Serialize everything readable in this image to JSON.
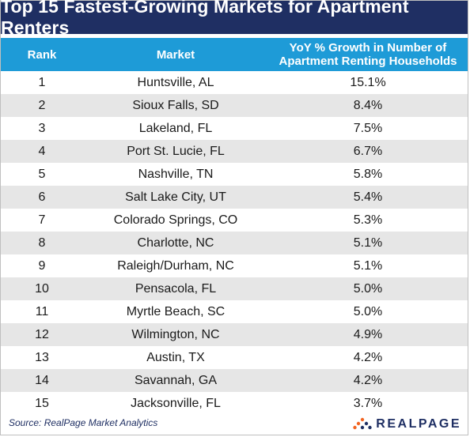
{
  "chart_data": {
    "type": "table",
    "title": "Top 15 Fastest-Growing Markets for Apartment Renters",
    "columns": {
      "rank": "Rank",
      "market": "Market",
      "growth_line1": "YoY % Growth in Number of",
      "growth_line2": "Apartment Renting Households"
    },
    "rows": [
      {
        "rank": "1",
        "market": "Huntsville, AL",
        "growth": "15.1%"
      },
      {
        "rank": "2",
        "market": "Sioux Falls, SD",
        "growth": "8.4%"
      },
      {
        "rank": "3",
        "market": "Lakeland, FL",
        "growth": "7.5%"
      },
      {
        "rank": "4",
        "market": "Port St. Lucie, FL",
        "growth": "6.7%"
      },
      {
        "rank": "5",
        "market": "Nashville, TN",
        "growth": "5.8%"
      },
      {
        "rank": "6",
        "market": "Salt Lake City, UT",
        "growth": "5.4%"
      },
      {
        "rank": "7",
        "market": "Colorado Springs, CO",
        "growth": "5.3%"
      },
      {
        "rank": "8",
        "market": "Charlotte, NC",
        "growth": "5.1%"
      },
      {
        "rank": "9",
        "market": "Raleigh/Durham, NC",
        "growth": "5.1%"
      },
      {
        "rank": "10",
        "market": "Pensacola, FL",
        "growth": "5.0%"
      },
      {
        "rank": "11",
        "market": "Myrtle Beach, SC",
        "growth": "5.0%"
      },
      {
        "rank": "12",
        "market": "Wilmington, NC",
        "growth": "4.9%"
      },
      {
        "rank": "13",
        "market": "Austin, TX",
        "growth": "4.2%"
      },
      {
        "rank": "14",
        "market": "Savannah, GA",
        "growth": "4.2%"
      },
      {
        "rank": "15",
        "market": "Jacksonville, FL",
        "growth": "3.7%"
      }
    ]
  },
  "footer": {
    "source": "Source: RealPage Market Analytics",
    "brand": "REALPAGE",
    "brand_icon": "realpage-logo-icon"
  },
  "colors": {
    "title_bg": "#1f2f63",
    "header_bg": "#1e9bd7",
    "stripe": "#e6e6e6",
    "logo_orange": "#f26522"
  }
}
